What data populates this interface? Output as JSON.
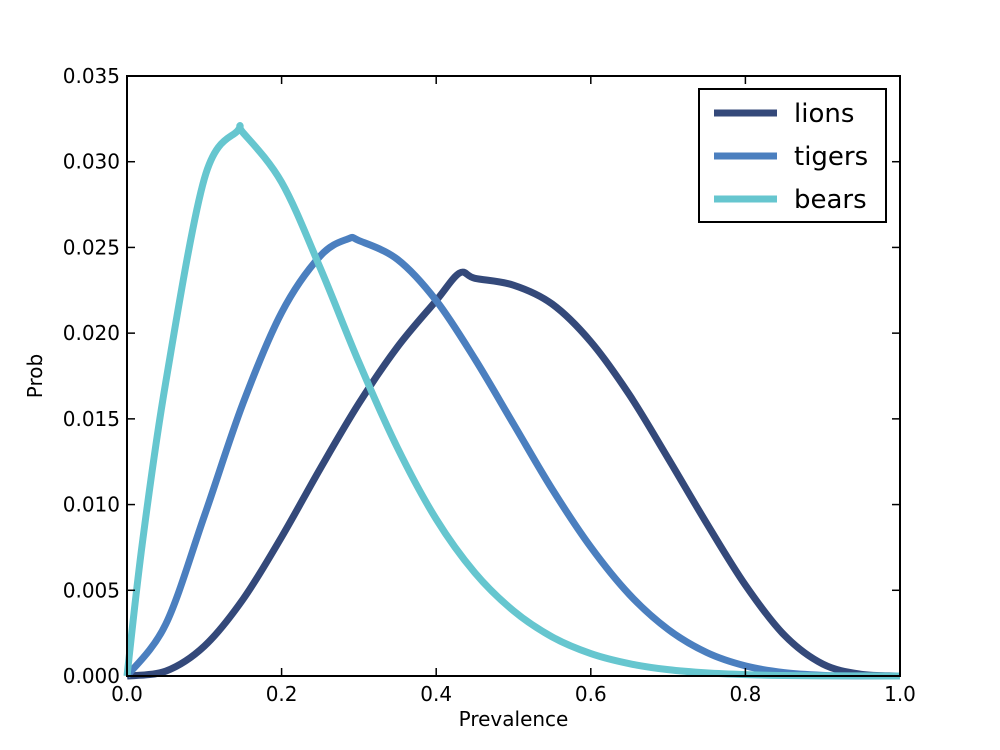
{
  "chart_data": {
    "type": "line",
    "title": "",
    "xlabel": "Prevalence",
    "ylabel": "Prob",
    "xlim": [
      0.0,
      1.0
    ],
    "ylim": [
      0.0,
      0.035
    ],
    "x_ticks": [
      "0.0",
      "0.2",
      "0.4",
      "0.6",
      "0.8",
      "1.0"
    ],
    "y_ticks": [
      "0.000",
      "0.005",
      "0.010",
      "0.015",
      "0.020",
      "0.025",
      "0.030",
      "0.035"
    ],
    "grid": false,
    "legend_position": "top-right",
    "series": [
      {
        "name": "lions",
        "color": "#34497a",
        "x": [
          0.0,
          0.05,
          0.1,
          0.15,
          0.2,
          0.25,
          0.3,
          0.35,
          0.4,
          0.43,
          0.45,
          0.5,
          0.55,
          0.6,
          0.65,
          0.7,
          0.75,
          0.8,
          0.85,
          0.9,
          0.95,
          1.0
        ],
        "y": [
          0.0,
          0.00028,
          0.00174,
          0.00447,
          0.00811,
          0.0121,
          0.0159,
          0.0192,
          0.0219,
          0.0235,
          0.0232,
          0.0228,
          0.0217,
          0.0195,
          0.0164,
          0.0127,
          0.0089,
          0.0053,
          0.0024,
          0.0007,
          0.0001,
          0.0
        ]
      },
      {
        "name": "tigers",
        "color": "#4b7fbf",
        "x": [
          0.0,
          0.05,
          0.1,
          0.15,
          0.2,
          0.25,
          0.286,
          0.3,
          0.35,
          0.4,
          0.45,
          0.5,
          0.55,
          0.6,
          0.65,
          0.7,
          0.75,
          0.8,
          0.85,
          0.9,
          0.95,
          1.0
        ],
        "y": [
          0.0,
          0.00301,
          0.00933,
          0.0159,
          0.0212,
          0.0245,
          0.0255,
          0.0254,
          0.0243,
          0.0219,
          0.0185,
          0.0147,
          0.0109,
          0.00752,
          0.00475,
          0.00272,
          0.00137,
          0.00059,
          0.0002,
          4e-05,
          0.0,
          0.0
        ]
      },
      {
        "name": "bears",
        "color": "#66c6cf",
        "x": [
          0.0,
          0.02,
          0.05,
          0.1,
          0.143,
          0.15,
          0.2,
          0.25,
          0.3,
          0.35,
          0.4,
          0.45,
          0.5,
          0.55,
          0.6,
          0.65,
          0.7,
          0.75,
          0.8,
          0.85,
          0.9,
          1.0
        ],
        "y": [
          0.0,
          0.0078,
          0.0171,
          0.029,
          0.0318,
          0.0317,
          0.0288,
          0.0238,
          0.0183,
          0.0133,
          0.00915,
          0.00602,
          0.0038,
          0.00228,
          0.00131,
          0.00072,
          0.00037,
          0.00018,
          8e-05,
          3e-05,
          1e-05,
          0.0
        ]
      }
    ]
  }
}
